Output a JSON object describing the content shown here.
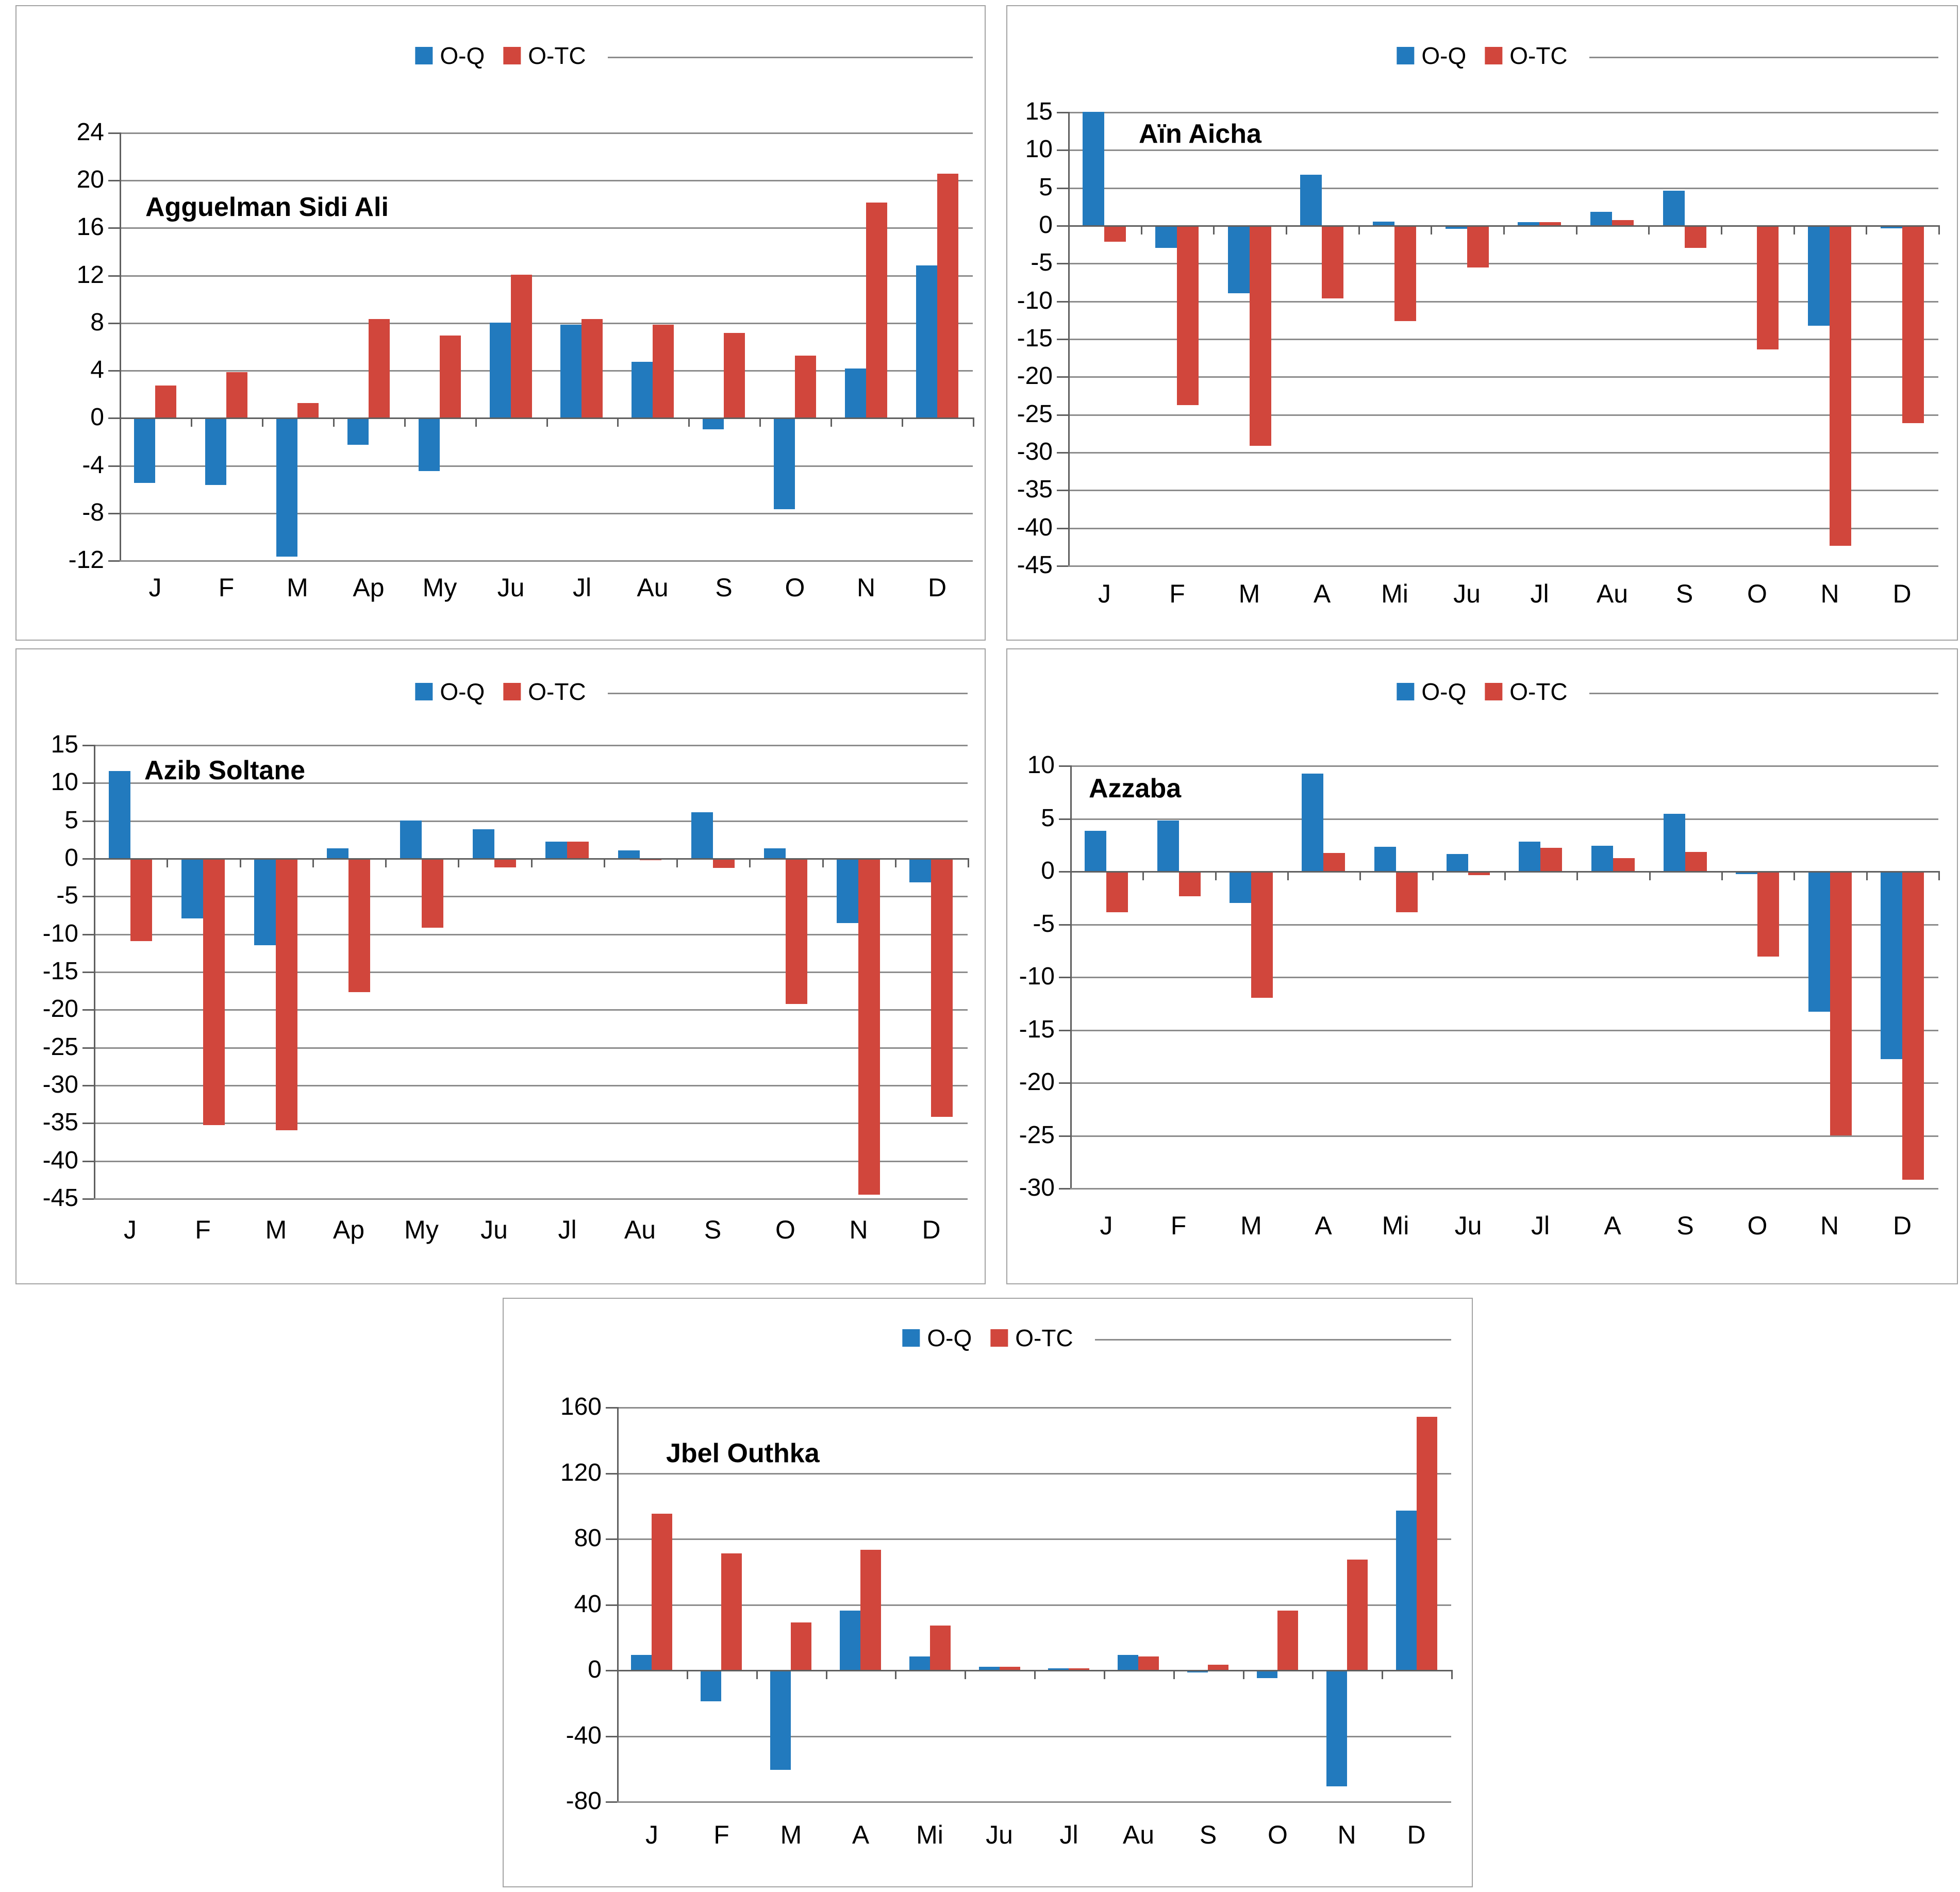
{
  "page": {
    "background": "#ffffff"
  },
  "colors": {
    "o_q": "#227ABE",
    "o_tc": "#D1463C",
    "gridline": "#8c8c8c",
    "axis": "#5f5f5f",
    "panel_border": "#a3a3a3",
    "text": "#000000"
  },
  "legend": {
    "series1": "O-Q",
    "series2": "O-TC"
  },
  "chart_data": [
    {
      "type": "bar",
      "title": "Agguelman Sidi Ali",
      "categories": [
        "J",
        "F",
        "M",
        "Ap",
        "My",
        "Ju",
        "Jl",
        "Au",
        "S",
        "O",
        "N",
        "D"
      ],
      "series": [
        {
          "name": "O-Q",
          "color": "#227ABE",
          "values": [
            -5.5,
            -5.7,
            -11.7,
            -2.3,
            -4.5,
            8.0,
            7.8,
            4.7,
            -1.0,
            -7.7,
            4.1,
            12.8
          ]
        },
        {
          "name": "O-TC",
          "color": "#D1463C",
          "values": [
            2.7,
            3.8,
            1.2,
            8.3,
            6.9,
            12.0,
            8.3,
            7.8,
            7.1,
            5.2,
            18.1,
            20.5
          ]
        }
      ],
      "xlabel": "",
      "ylabel": "",
      "ylim": [
        -12,
        24
      ],
      "ytick_step": 4,
      "grid": true,
      "legend_position": "top"
    },
    {
      "type": "bar",
      "title": "Aïn Aicha",
      "categories": [
        "J",
        "F",
        "M",
        "A",
        "Mi",
        "Ju",
        "Jl",
        "Au",
        "S",
        "O",
        "N",
        "D"
      ],
      "series": [
        {
          "name": "O-Q",
          "color": "#227ABE",
          "values": [
            15.0,
            -3.0,
            -9.0,
            6.7,
            0.5,
            -0.5,
            0.4,
            1.8,
            4.6,
            -0.2,
            -13.3,
            -0.4
          ]
        },
        {
          "name": "O-TC",
          "color": "#D1463C",
          "values": [
            -2.2,
            -23.8,
            -29.2,
            -9.7,
            -12.7,
            -5.6,
            0.4,
            0.7,
            -3.0,
            -16.4,
            -42.4,
            -26.2
          ]
        }
      ],
      "xlabel": "",
      "ylabel": "",
      "ylim": [
        -45,
        15
      ],
      "ytick_step": 5,
      "grid": true,
      "legend_position": "top"
    },
    {
      "type": "bar",
      "title": "Azib Soltane",
      "categories": [
        "J",
        "F",
        "M",
        "Ap",
        "My",
        "Ju",
        "Jl",
        "Au",
        "S",
        "O",
        "N",
        "D"
      ],
      "series": [
        {
          "name": "O-Q",
          "color": "#227ABE",
          "values": [
            11.5,
            -8.0,
            -11.5,
            1.3,
            5.0,
            3.8,
            2.2,
            1.0,
            6.1,
            1.3,
            -8.6,
            -3.2
          ]
        },
        {
          "name": "O-TC",
          "color": "#D1463C",
          "values": [
            -11.0,
            -35.3,
            -36.0,
            -17.7,
            -9.2,
            -1.2,
            2.2,
            -0.3,
            -1.3,
            -19.3,
            -44.5,
            -34.2
          ]
        }
      ],
      "xlabel": "",
      "ylabel": "",
      "ylim": [
        -45,
        15
      ],
      "ytick_step": 5,
      "grid": true,
      "legend_position": "top"
    },
    {
      "type": "bar",
      "title": "Azzaba",
      "categories": [
        "J",
        "F",
        "M",
        "A",
        "Mi",
        "Ju",
        "Jl",
        "A",
        "S",
        "O",
        "N",
        "D"
      ],
      "series": [
        {
          "name": "O-Q",
          "color": "#227ABE",
          "values": [
            3.8,
            4.8,
            -3.0,
            9.2,
            2.3,
            1.6,
            2.8,
            2.4,
            5.4,
            -0.3,
            -13.3,
            -17.8
          ]
        },
        {
          "name": "O-TC",
          "color": "#D1463C",
          "values": [
            -3.9,
            -2.4,
            -12.0,
            1.7,
            -3.9,
            -0.4,
            2.2,
            1.2,
            1.8,
            -8.1,
            -25.0,
            -29.2
          ]
        }
      ],
      "xlabel": "",
      "ylabel": "",
      "ylim": [
        -30,
        10
      ],
      "ytick_step": 5,
      "grid": true,
      "legend_position": "top"
    },
    {
      "type": "bar",
      "title": "Jbel Outhka",
      "categories": [
        "J",
        "F",
        "M",
        "A",
        "Mi",
        "Ju",
        "Jl",
        "Au",
        "S",
        "O",
        "N",
        "D"
      ],
      "series": [
        {
          "name": "O-Q",
          "color": "#227ABE",
          "values": [
            9,
            -19,
            -61,
            36,
            8,
            2,
            1,
            9,
            -1.5,
            -5,
            -71,
            97
          ]
        },
        {
          "name": "O-TC",
          "color": "#D1463C",
          "values": [
            95,
            71,
            29,
            73,
            27,
            2,
            1,
            8,
            3,
            36,
            67,
            154
          ]
        }
      ],
      "xlabel": "",
      "ylabel": "",
      "ylim": [
        -80,
        160
      ],
      "ytick_step": 40,
      "grid": true,
      "legend_position": "top"
    }
  ]
}
